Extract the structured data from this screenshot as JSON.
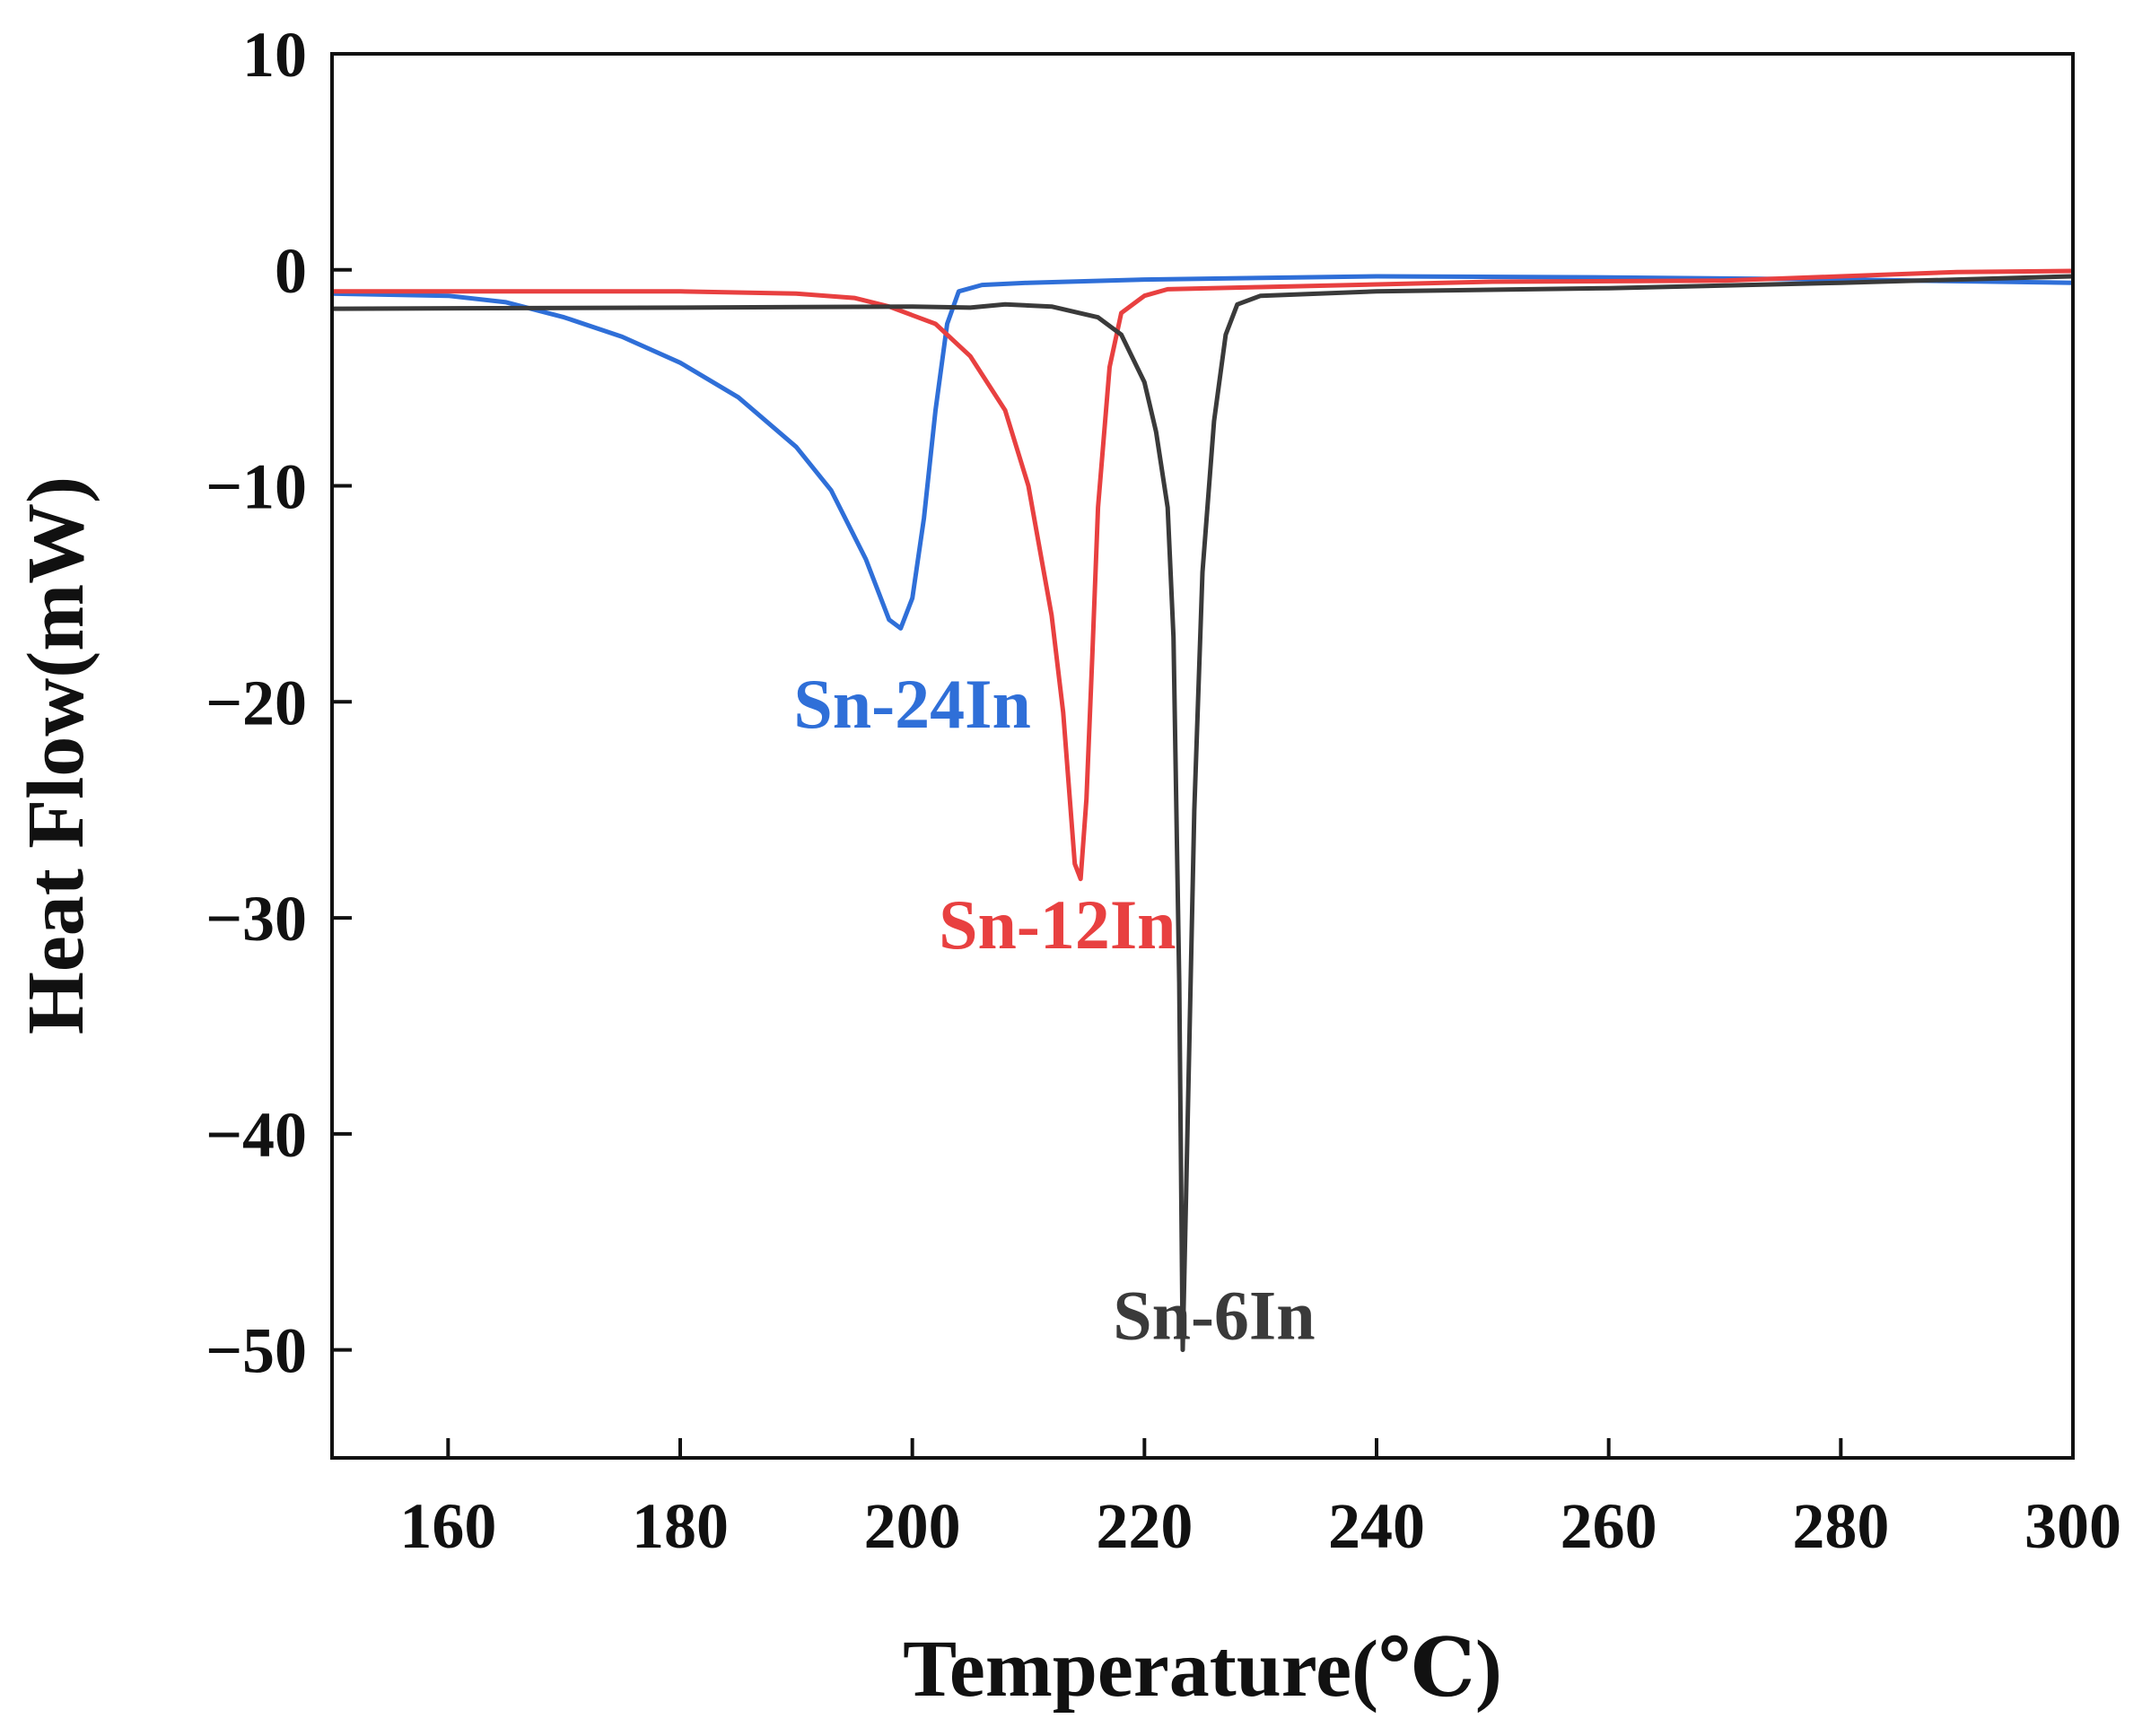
{
  "chart_data": {
    "type": "line",
    "title": "",
    "xlabel": "Temperature(℃)",
    "ylabel": "Heat Flow(mW)",
    "xlim": [
      150,
      300
    ],
    "ylim": [
      -55,
      10
    ],
    "xticks": [
      160,
      180,
      200,
      220,
      240,
      260,
      280,
      300
    ],
    "yticks": [
      10,
      0,
      -10,
      -20,
      -30,
      -40,
      -50
    ],
    "ytick_labels": [
      "10",
      "0",
      "−10",
      "−20",
      "−30",
      "−40",
      "−50"
    ],
    "grid": false,
    "series": [
      {
        "name": "Sn-24In",
        "color": "#2f6fd8",
        "label_anchor": [
          200,
          -21.2
        ],
        "points": [
          [
            150,
            -1.1
          ],
          [
            160,
            -1.2
          ],
          [
            165,
            -1.5
          ],
          [
            170,
            -2.2
          ],
          [
            175,
            -3.1
          ],
          [
            180,
            -4.3
          ],
          [
            185,
            -5.9
          ],
          [
            190,
            -8.2
          ],
          [
            193,
            -10.2
          ],
          [
            196,
            -13.4
          ],
          [
            198,
            -16.2
          ],
          [
            199,
            -16.6
          ],
          [
            200,
            -15.2
          ],
          [
            201,
            -11.5
          ],
          [
            202,
            -6.5
          ],
          [
            203,
            -2.5
          ],
          [
            204,
            -1.0
          ],
          [
            206,
            -0.7
          ],
          [
            210,
            -0.6
          ],
          [
            220,
            -0.45
          ],
          [
            240,
            -0.3
          ],
          [
            260,
            -0.35
          ],
          [
            280,
            -0.45
          ],
          [
            300,
            -0.6
          ]
        ]
      },
      {
        "name": "Sn-12In",
        "color": "#e84040",
        "label_anchor": [
          212.5,
          -31.4
        ],
        "points": [
          [
            150,
            -1.0
          ],
          [
            180,
            -1.0
          ],
          [
            190,
            -1.1
          ],
          [
            195,
            -1.3
          ],
          [
            198,
            -1.7
          ],
          [
            202,
            -2.5
          ],
          [
            205,
            -4.0
          ],
          [
            208,
            -6.5
          ],
          [
            210,
            -10.0
          ],
          [
            212,
            -16.0
          ],
          [
            213,
            -20.5
          ],
          [
            214,
            -27.5
          ],
          [
            214.5,
            -28.2
          ],
          [
            215,
            -24.5
          ],
          [
            215.5,
            -18.0
          ],
          [
            216,
            -11.0
          ],
          [
            217,
            -4.5
          ],
          [
            218,
            -2.0
          ],
          [
            220,
            -1.2
          ],
          [
            222,
            -0.9
          ],
          [
            230,
            -0.8
          ],
          [
            250,
            -0.55
          ],
          [
            270,
            -0.5
          ],
          [
            280,
            -0.3
          ],
          [
            290,
            -0.1
          ],
          [
            300,
            -0.05
          ]
        ]
      },
      {
        "name": "Sn-6In",
        "color": "#3a3a3a",
        "label_anchor": [
          226,
          -49.5
        ],
        "points": [
          [
            150,
            -1.8
          ],
          [
            180,
            -1.75
          ],
          [
            200,
            -1.7
          ],
          [
            205,
            -1.75
          ],
          [
            208,
            -1.6
          ],
          [
            212,
            -1.7
          ],
          [
            216,
            -2.2
          ],
          [
            218,
            -3.0
          ],
          [
            220,
            -5.2
          ],
          [
            221,
            -7.5
          ],
          [
            222,
            -11.0
          ],
          [
            222.5,
            -17.0
          ],
          [
            223,
            -33.0
          ],
          [
            223.3,
            -50.0
          ],
          [
            223.7,
            -40.0
          ],
          [
            224.3,
            -25.0
          ],
          [
            225,
            -14.0
          ],
          [
            226,
            -7.0
          ],
          [
            227,
            -3.0
          ],
          [
            228,
            -1.6
          ],
          [
            230,
            -1.2
          ],
          [
            240,
            -1.0
          ],
          [
            260,
            -0.85
          ],
          [
            280,
            -0.6
          ],
          [
            300,
            -0.3
          ]
        ]
      }
    ]
  }
}
